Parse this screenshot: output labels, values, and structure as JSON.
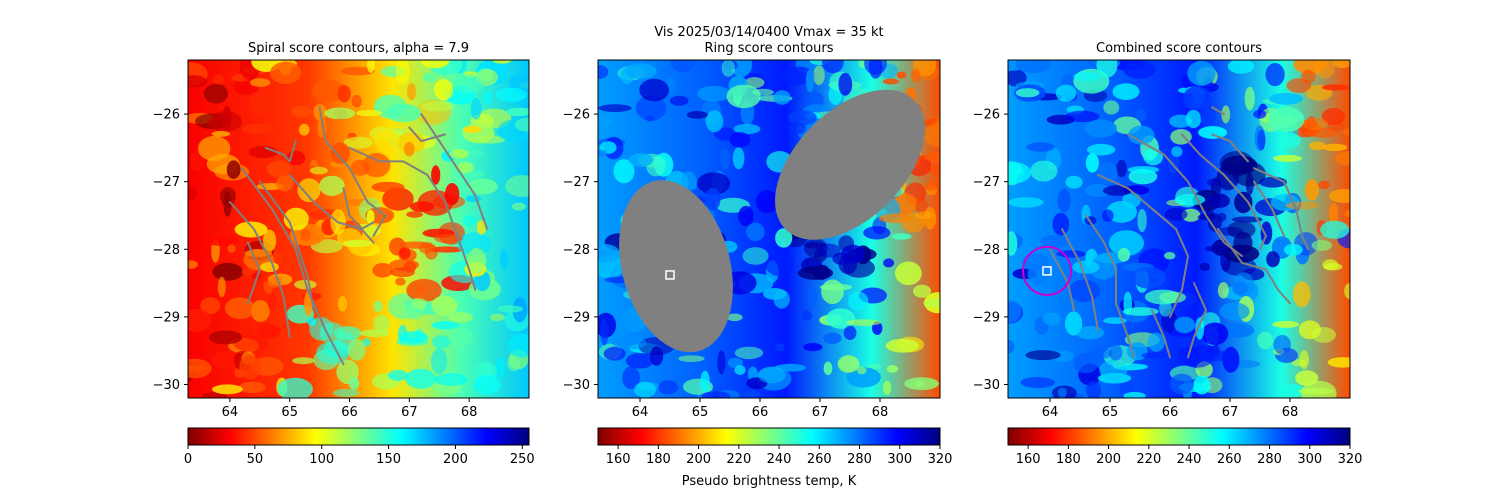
{
  "figure": {
    "suptitle_line1": "Vis  2025/03/14/0400    Vmax = 35 kt",
    "colorbar_label": "Pseudo brightness temp, K"
  },
  "colors": {
    "contour": "#808080",
    "center_marker": "#ffffff",
    "ring_marker": "#cc00cc"
  },
  "chart_data": [
    {
      "type": "heatmap",
      "title": "Spiral score contours, alpha =  7.9",
      "colormap": "jet_r",
      "x_ticks": [
        64,
        65,
        66,
        67,
        68
      ],
      "y_ticks": [
        -26,
        -27,
        -28,
        -29,
        -30
      ],
      "xlim": [
        63.3,
        69.0
      ],
      "ylim": [
        -30.2,
        -25.2
      ],
      "colorbar": {
        "range": [
          0,
          255
        ],
        "ticks": [
          0,
          50,
          100,
          150,
          200,
          250
        ]
      },
      "center_marker": null,
      "ring_marker": null,
      "contours": [
        [
          [
            64.6,
            -26.5
          ],
          [
            64.9,
            -26.6
          ],
          [
            65.0,
            -26.7
          ],
          [
            65.1,
            -26.4
          ]
        ],
        [
          [
            64.2,
            -26.8
          ],
          [
            64.7,
            -27.4
          ],
          [
            65.1,
            -28.0
          ],
          [
            65.3,
            -28.6
          ],
          [
            65.6,
            -29.2
          ],
          [
            65.9,
            -29.7
          ]
        ],
        [
          [
            64.0,
            -27.3
          ],
          [
            64.4,
            -27.7
          ],
          [
            64.7,
            -28.2
          ],
          [
            64.9,
            -28.7
          ],
          [
            65.0,
            -29.3
          ]
        ],
        [
          [
            64.3,
            -27.9
          ],
          [
            64.5,
            -28.3
          ],
          [
            64.3,
            -28.8
          ]
        ],
        [
          [
            64.5,
            -27.0
          ],
          [
            65.0,
            -27.6
          ],
          [
            65.3,
            -28.4
          ],
          [
            65.4,
            -28.9
          ]
        ],
        [
          [
            65.5,
            -25.9
          ],
          [
            65.6,
            -26.4
          ],
          [
            66.0,
            -26.8
          ],
          [
            66.3,
            -27.3
          ],
          [
            66.6,
            -27.5
          ],
          [
            66.4,
            -27.8
          ]
        ],
        [
          [
            65.0,
            -26.9
          ],
          [
            65.4,
            -27.3
          ],
          [
            65.8,
            -27.6
          ],
          [
            66.2,
            -27.7
          ],
          [
            66.4,
            -27.6
          ]
        ],
        [
          [
            65.9,
            -27.1
          ],
          [
            66.0,
            -27.5
          ],
          [
            66.4,
            -27.9
          ]
        ],
        [
          [
            66.0,
            -26.5
          ],
          [
            66.5,
            -26.7
          ],
          [
            66.9,
            -26.7
          ],
          [
            67.3,
            -26.9
          ],
          [
            67.6,
            -27.3
          ],
          [
            67.8,
            -27.8
          ],
          [
            68.0,
            -28.3
          ],
          [
            68.1,
            -28.6
          ]
        ],
        [
          [
            67.0,
            -26.2
          ],
          [
            67.2,
            -26.4
          ],
          [
            67.6,
            -26.3
          ]
        ],
        [
          [
            67.2,
            -26.0
          ],
          [
            67.5,
            -26.4
          ],
          [
            67.8,
            -26.8
          ],
          [
            68.1,
            -27.2
          ],
          [
            68.3,
            -27.7
          ]
        ]
      ]
    },
    {
      "type": "heatmap",
      "title": "Ring score contours",
      "colormap": "jet_r",
      "x_ticks": [
        64,
        65,
        66,
        67,
        68
      ],
      "y_ticks": [
        -26,
        -27,
        -28,
        -29,
        -30
      ],
      "xlim": [
        63.3,
        69.0
      ],
      "ylim": [
        -30.2,
        -25.2
      ],
      "colorbar": {
        "range": [
          150,
          320
        ],
        "ticks": [
          160,
          180,
          200,
          220,
          240,
          260,
          280,
          300,
          320
        ]
      },
      "center_marker": [
        64.5,
        -28.38
      ],
      "ring_marker": null,
      "filled_regions": [
        {
          "center": [
            64.6,
            -28.25
          ],
          "radii": [
            0.9,
            1.3
          ],
          "rotation_deg": -15
        },
        {
          "center": [
            67.5,
            -26.75
          ],
          "radii": [
            0.9,
            1.35
          ],
          "rotation_deg": 45
        }
      ],
      "contours": []
    },
    {
      "type": "heatmap",
      "title": "Combined score contours",
      "colormap": "jet_r",
      "x_ticks": [
        64,
        65,
        66,
        67,
        68
      ],
      "y_ticks": [
        -26,
        -27,
        -28,
        -29,
        -30
      ],
      "xlim": [
        63.3,
        69.0
      ],
      "ylim": [
        -30.2,
        -25.2
      ],
      "colorbar": {
        "range": [
          150,
          320
        ],
        "ticks": [
          160,
          180,
          200,
          220,
          240,
          260,
          280,
          300,
          320
        ]
      },
      "center_marker": [
        63.95,
        -28.32
      ],
      "ring_marker": {
        "center": [
          63.95,
          -28.32
        ],
        "radius": 0.4
      },
      "contours": [
        [
          [
            64.8,
            -26.9
          ],
          [
            65.3,
            -27.1
          ],
          [
            65.7,
            -27.4
          ],
          [
            66.1,
            -27.7
          ],
          [
            66.3,
            -28.1
          ],
          [
            66.2,
            -28.6
          ],
          [
            66.0,
            -29.0
          ]
        ],
        [
          [
            64.6,
            -27.5
          ],
          [
            64.9,
            -27.9
          ],
          [
            65.1,
            -28.3
          ],
          [
            65.1,
            -28.8
          ],
          [
            65.3,
            -29.3
          ],
          [
            65.4,
            -29.6
          ]
        ],
        [
          [
            64.2,
            -27.7
          ],
          [
            64.5,
            -28.2
          ],
          [
            64.7,
            -28.7
          ],
          [
            64.8,
            -29.2
          ]
        ],
        [
          [
            64.0,
            -28.0
          ],
          [
            64.3,
            -28.5
          ],
          [
            64.4,
            -28.9
          ]
        ],
        [
          [
            65.3,
            -26.3
          ],
          [
            65.9,
            -26.6
          ],
          [
            66.3,
            -27.0
          ],
          [
            66.6,
            -27.5
          ],
          [
            66.9,
            -27.9
          ],
          [
            67.2,
            -28.1
          ]
        ],
        [
          [
            66.2,
            -26.3
          ],
          [
            66.5,
            -26.6
          ],
          [
            66.9,
            -26.9
          ],
          [
            67.3,
            -27.3
          ],
          [
            67.6,
            -27.8
          ],
          [
            67.5,
            -28.0
          ]
        ],
        [
          [
            66.7,
            -26.3
          ],
          [
            67.0,
            -26.4
          ],
          [
            67.3,
            -26.7
          ]
        ],
        [
          [
            67.4,
            -27.0
          ],
          [
            67.7,
            -27.4
          ],
          [
            67.9,
            -27.8
          ]
        ],
        [
          [
            67.4,
            -26.8
          ],
          [
            67.9,
            -27.0
          ],
          [
            68.1,
            -27.4
          ],
          [
            68.2,
            -27.8
          ],
          [
            68.3,
            -28.0
          ]
        ],
        [
          [
            66.7,
            -25.9
          ],
          [
            66.9,
            -26.0
          ]
        ],
        [
          [
            66.8,
            -27.7
          ],
          [
            67.2,
            -28.2
          ],
          [
            67.6,
            -28.3
          ],
          [
            67.8,
            -28.6
          ],
          [
            68.0,
            -28.8
          ]
        ],
        [
          [
            66.4,
            -28.5
          ],
          [
            66.6,
            -28.9
          ],
          [
            66.4,
            -29.3
          ],
          [
            66.3,
            -29.6
          ]
        ],
        [
          [
            65.7,
            -28.9
          ],
          [
            65.9,
            -29.3
          ],
          [
            66.0,
            -29.6
          ]
        ]
      ]
    }
  ]
}
